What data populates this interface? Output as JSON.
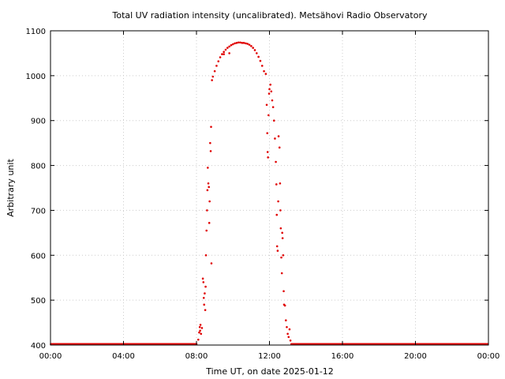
{
  "chart_data": {
    "type": "scatter",
    "title": "Total UV radiation intensity (uncalibrated). Metsähovi Radio Observatory",
    "xlabel": "Time UT, on date 2025-01-12",
    "ylabel": "Arbitrary unit",
    "xlim": [
      0,
      24
    ],
    "ylim": [
      400,
      1100
    ],
    "xticks": [
      {
        "value": 0,
        "label": "00:00"
      },
      {
        "value": 4,
        "label": "04:00"
      },
      {
        "value": 8,
        "label": "08:00"
      },
      {
        "value": 12,
        "label": "12:00"
      },
      {
        "value": 16,
        "label": "16:00"
      },
      {
        "value": 20,
        "label": "20:00"
      },
      {
        "value": 24,
        "label": "00:00"
      }
    ],
    "yticks": [
      400,
      500,
      600,
      700,
      800,
      900,
      1000,
      1100
    ],
    "grid": true,
    "legend": "none",
    "colors": {
      "series": "#e00000",
      "axis": "#000000",
      "grid": "#cccccc"
    },
    "series": [
      {
        "points": [
          [
            8.0,
            402
          ],
          [
            8.1,
            412
          ],
          [
            8.15,
            428
          ],
          [
            8.18,
            440
          ],
          [
            8.2,
            432
          ],
          [
            8.22,
            445
          ],
          [
            8.25,
            425
          ],
          [
            8.3,
            438
          ],
          [
            8.35,
            548
          ],
          [
            8.38,
            540
          ],
          [
            8.4,
            505
          ],
          [
            8.42,
            490
          ],
          [
            8.45,
            515
          ],
          [
            8.48,
            478
          ],
          [
            8.5,
            530
          ],
          [
            8.52,
            600
          ],
          [
            8.55,
            655
          ],
          [
            8.58,
            700
          ],
          [
            8.6,
            745
          ],
          [
            8.62,
            795
          ],
          [
            8.65,
            760
          ],
          [
            8.68,
            752
          ],
          [
            8.7,
            672
          ],
          [
            8.72,
            720
          ],
          [
            8.75,
            850
          ],
          [
            8.78,
            832
          ],
          [
            8.8,
            886
          ],
          [
            8.82,
            582
          ],
          [
            8.85,
            990
          ],
          [
            8.9,
            998
          ],
          [
            9.0,
            1010
          ],
          [
            9.1,
            1022
          ],
          [
            9.2,
            1032
          ],
          [
            9.3,
            1041
          ],
          [
            9.4,
            1048
          ],
          [
            9.5,
            1053
          ],
          [
            9.6,
            1058
          ],
          [
            9.7,
            1062
          ],
          [
            9.8,
            1065
          ],
          [
            9.9,
            1068
          ],
          [
            10.0,
            1070
          ],
          [
            10.1,
            1072
          ],
          [
            10.2,
            1073
          ],
          [
            10.3,
            1074
          ],
          [
            10.4,
            1074
          ],
          [
            10.5,
            1073
          ],
          [
            10.6,
            1073
          ],
          [
            10.7,
            1072
          ],
          [
            10.8,
            1071
          ],
          [
            10.9,
            1069
          ],
          [
            11.0,
            1066
          ],
          [
            11.1,
            1062
          ],
          [
            11.2,
            1057
          ],
          [
            11.3,
            1050
          ],
          [
            11.4,
            1042
          ],
          [
            11.5,
            1033
          ],
          [
            11.6,
            1022
          ],
          [
            11.7,
            1010
          ],
          [
            9.5,
            1048
          ],
          [
            9.8,
            1050
          ],
          [
            11.8,
            1004
          ],
          [
            11.85,
            935
          ],
          [
            11.88,
            872
          ],
          [
            11.9,
            830
          ],
          [
            11.92,
            818
          ],
          [
            11.95,
            912
          ],
          [
            11.98,
            960
          ],
          [
            12.0,
            970
          ],
          [
            12.05,
            980
          ],
          [
            12.1,
            965
          ],
          [
            12.15,
            945
          ],
          [
            12.2,
            930
          ],
          [
            12.25,
            900
          ],
          [
            12.3,
            860
          ],
          [
            12.35,
            808
          ],
          [
            12.38,
            758
          ],
          [
            12.4,
            690
          ],
          [
            12.42,
            620
          ],
          [
            12.45,
            610
          ],
          [
            12.48,
            720
          ],
          [
            12.5,
            865
          ],
          [
            12.55,
            840
          ],
          [
            12.58,
            760
          ],
          [
            12.6,
            700
          ],
          [
            12.62,
            660
          ],
          [
            12.65,
            595
          ],
          [
            12.68,
            560
          ],
          [
            12.7,
            650
          ],
          [
            12.72,
            638
          ],
          [
            12.75,
            600
          ],
          [
            12.78,
            520
          ],
          [
            12.8,
            490
          ],
          [
            12.85,
            488
          ],
          [
            12.9,
            455
          ],
          [
            12.95,
            440
          ],
          [
            13.0,
            425
          ],
          [
            13.05,
            418
          ],
          [
            13.1,
            435
          ],
          [
            13.15,
            410
          ],
          [
            13.2,
            402
          ]
        ]
      }
    ]
  }
}
